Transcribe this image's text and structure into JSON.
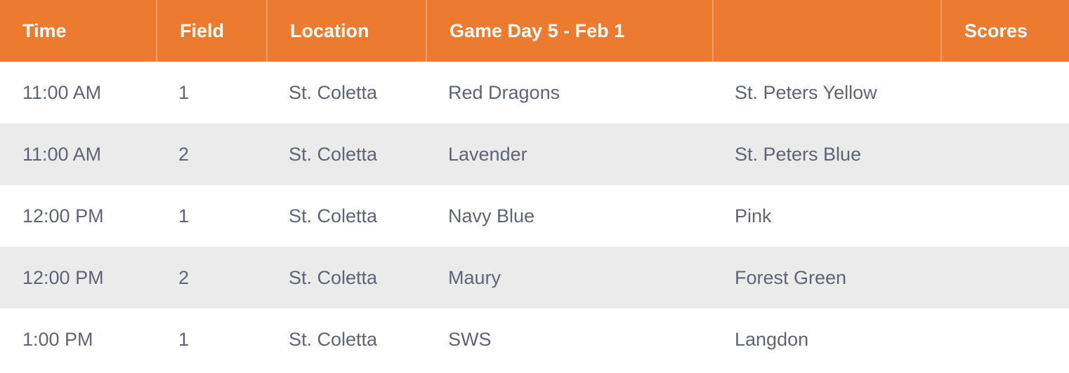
{
  "table": {
    "header": {
      "time": "Time",
      "field": "Field",
      "location": "Location",
      "game_day": "Game Day 5 - Feb 1",
      "opponent": "",
      "scores": "Scores"
    },
    "rows": [
      {
        "time": "11:00 AM",
        "field": "1",
        "location": "St. Coletta",
        "home": "Red Dragons",
        "away": "St. Peters Yellow",
        "scores": ""
      },
      {
        "time": "11:00 AM",
        "field": "2",
        "location": "St. Coletta",
        "home": "Lavender",
        "away": "St. Peters Blue",
        "scores": ""
      },
      {
        "time": "12:00 PM",
        "field": "1",
        "location": "St. Coletta",
        "home": "Navy Blue",
        "away": "Pink",
        "scores": ""
      },
      {
        "time": "12:00 PM",
        "field": "2",
        "location": "St. Coletta",
        "home": "Maury",
        "away": "Forest Green",
        "scores": ""
      },
      {
        "time": "1:00 PM",
        "field": "1",
        "location": "St. Coletta",
        "home": "SWS",
        "away": "Langdon",
        "scores": ""
      }
    ]
  },
  "colors": {
    "header_bg": "#ED7B2F",
    "header_text": "#FFFFFF",
    "row_bg": "#FFFFFF",
    "row_alt_bg": "#EBEBEB",
    "body_text": "#5F6475"
  }
}
